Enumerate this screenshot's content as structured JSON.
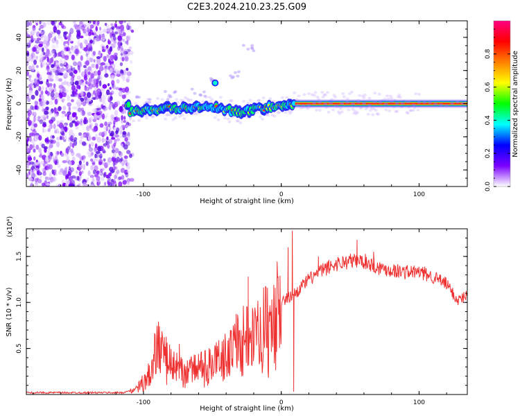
{
  "title": "C2E3.2024.210.23.25.G09",
  "chart_data": [
    {
      "type": "heatmap",
      "name": "spectrogram",
      "xlabel": "Height of straight line (km)",
      "ylabel": "Frequency (Hz)",
      "xlim": [
        -185,
        135
      ],
      "ylim": [
        -50,
        50
      ],
      "xticks": [
        -100,
        0,
        100
      ],
      "xtick_labels": [
        "-100",
        "0",
        "100"
      ],
      "yticks": [
        -40,
        -20,
        0,
        20,
        40
      ],
      "ytick_labels": [
        "-40",
        "-20",
        "0",
        "20",
        "40"
      ],
      "colorbar": {
        "label": "Normalized spectral amplitude",
        "range": [
          0,
          1
        ],
        "ticks": [
          0.0,
          0.2,
          0.4,
          0.6,
          0.8
        ],
        "tick_labels": [
          "0.0",
          "0.2",
          "0.4",
          "0.6",
          "0.8"
        ],
        "colormap": [
          "#ffffff",
          "#7a00ff",
          "#0000ff",
          "#00ffff",
          "#00ff00",
          "#ffff00",
          "#ff8000",
          "#ff0000",
          "#ff0080"
        ]
      },
      "features": {
        "noise_region_km": [
          -185,
          -110
        ],
        "signal_track_hz": [
          [
            -110,
            -5
          ],
          [
            -90,
            -3
          ],
          [
            -75,
            -3
          ],
          [
            -60,
            -2
          ],
          [
            -45,
            -3
          ],
          [
            -30,
            -5
          ],
          [
            -15,
            -3
          ],
          [
            0,
            -1
          ],
          [
            15,
            0
          ],
          [
            135,
            0
          ]
        ],
        "strong_line_start_km": 10,
        "side_track_points": [
          [
            -100,
            2
          ],
          [
            -80,
            5
          ],
          [
            -60,
            7
          ],
          [
            -48,
            13
          ],
          [
            -35,
            18
          ],
          [
            -25,
            33
          ]
        ]
      }
    },
    {
      "type": "line",
      "name": "snr",
      "xlabel": "Height of straight line (km)",
      "ylabel": "SNR (10 * v/v)",
      "scale_label": "(x10⁴)",
      "xlim": [
        -185,
        135
      ],
      "ylim": [
        0,
        1.8
      ],
      "xticks": [
        -100,
        0,
        100
      ],
      "xtick_labels": [
        "-100",
        "0",
        "100"
      ],
      "yticks": [
        0.5,
        1.0,
        1.5
      ],
      "ytick_labels": [
        "0.5",
        "1.0",
        "1.5"
      ],
      "series_color": "#ee3030",
      "envelope": [
        [
          -185,
          0.02
        ],
        [
          -115,
          0.02
        ],
        [
          -105,
          0.06
        ],
        [
          -95,
          0.25
        ],
        [
          -90,
          0.55
        ],
        [
          -80,
          0.35
        ],
        [
          -70,
          0.25
        ],
        [
          -60,
          0.3
        ],
        [
          -50,
          0.35
        ],
        [
          -40,
          0.45
        ],
        [
          -30,
          0.65
        ],
        [
          -20,
          0.7
        ],
        [
          -10,
          0.8
        ],
        [
          0,
          1.0
        ],
        [
          10,
          1.1
        ],
        [
          20,
          1.25
        ],
        [
          30,
          1.35
        ],
        [
          40,
          1.42
        ],
        [
          50,
          1.45
        ],
        [
          60,
          1.45
        ],
        [
          70,
          1.38
        ],
        [
          80,
          1.35
        ],
        [
          90,
          1.33
        ],
        [
          100,
          1.33
        ],
        [
          110,
          1.28
        ],
        [
          120,
          1.2
        ],
        [
          128,
          1.02
        ],
        [
          135,
          1.08
        ]
      ],
      "spikes": [
        [
          -90,
          0.7
        ],
        [
          -74,
          0.55
        ],
        [
          -37,
          0.7
        ],
        [
          -24,
          1.28
        ],
        [
          -24,
          1.05
        ],
        [
          5,
          1.6
        ],
        [
          8,
          1.78
        ],
        [
          9,
          0.03
        ],
        [
          27,
          1.5
        ],
        [
          55,
          1.68
        ],
        [
          67,
          1.55
        ],
        [
          82,
          1.4
        ]
      ]
    }
  ]
}
